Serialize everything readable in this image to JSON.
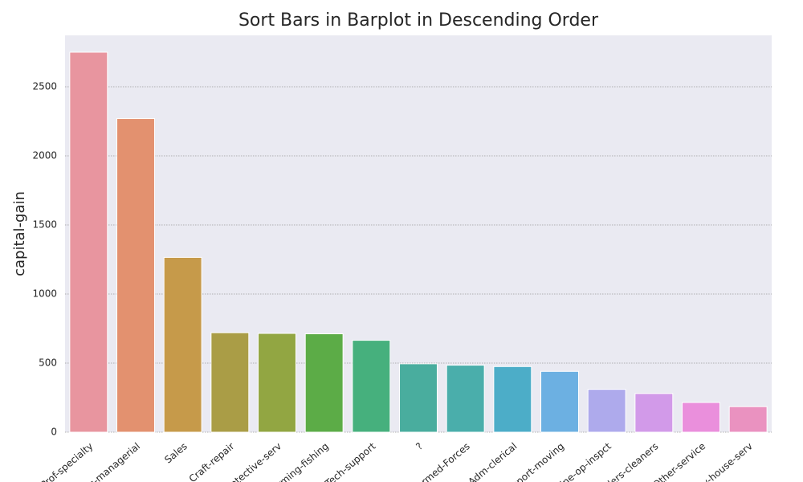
{
  "chart_data": {
    "type": "bar",
    "title": "Sort Bars in Barplot in Descending Order",
    "ylabel": "capital-gain",
    "categories": [
      "Prof-specialty",
      "Exec-managerial",
      "Sales",
      "Craft-repair",
      "Protective-serv",
      "Farming-fishing",
      "Tech-support",
      "?",
      "Armed-Forces",
      "Adm-clerical",
      "Transport-moving",
      "Machine-op-inspct",
      "Handlers-cleaners",
      "Other-service",
      "Priv-house-serv"
    ],
    "values": [
      2750,
      2270,
      1265,
      720,
      715,
      712,
      665,
      495,
      485,
      475,
      440,
      310,
      280,
      215,
      185
    ],
    "colors": [
      "#e8959f",
      "#e3916f",
      "#c69a4a",
      "#aa9d46",
      "#92a642",
      "#5cac47",
      "#46b07d",
      "#49ad9e",
      "#4aaeab",
      "#4cadc8",
      "#6cb0e2",
      "#aeaaec",
      "#d29ae9",
      "#ea8fdc",
      "#ea92c0"
    ],
    "ylim": [
      0,
      2872
    ],
    "yticks": [
      0,
      500,
      1000,
      1500,
      2000,
      2500
    ],
    "grid": true
  }
}
